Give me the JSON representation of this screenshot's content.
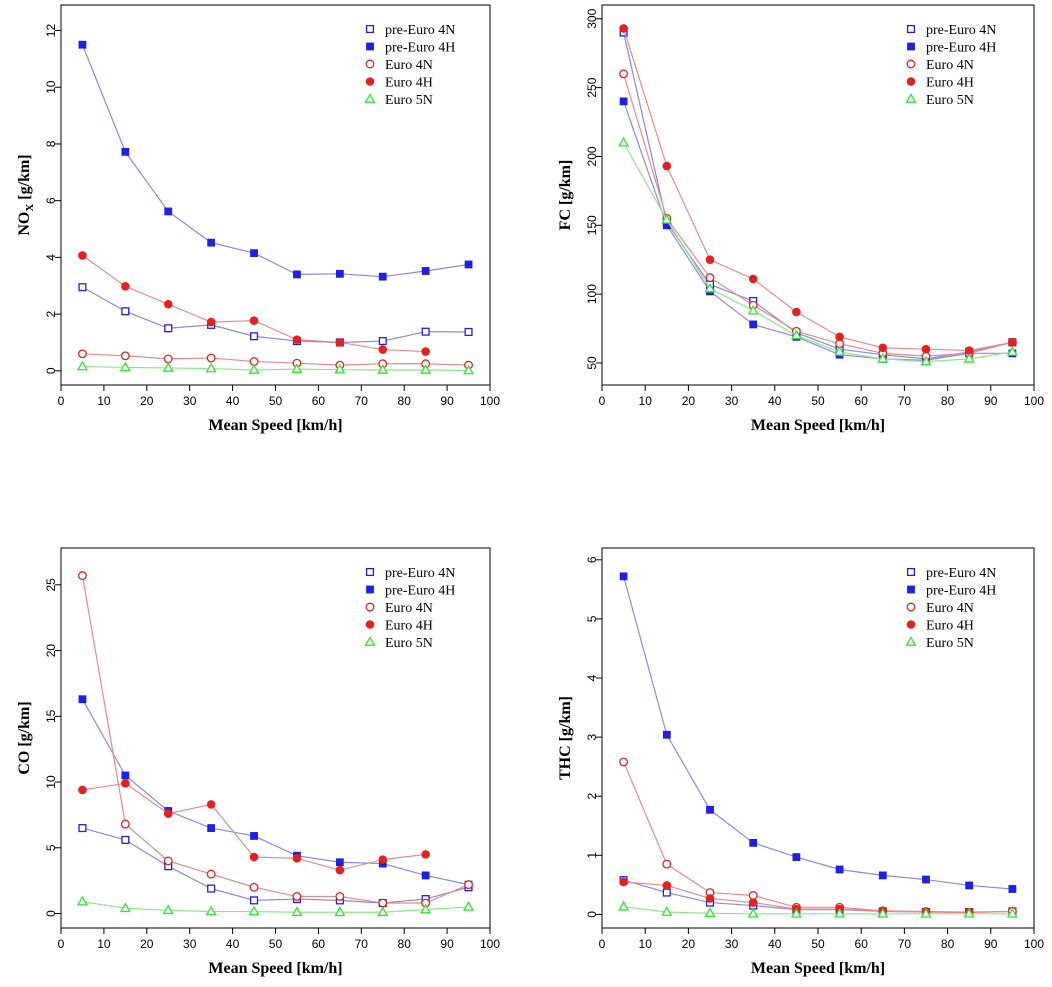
{
  "colors": {
    "blue": "#1f1fe6",
    "red": "#e6201f",
    "green": "#2ee62e",
    "blue_line": "#8a8ae8",
    "red_line": "#e88a8a",
    "green_line": "#8ae88a"
  },
  "chart_data": [
    {
      "type": "line",
      "ylabel": "NOX [g/km]",
      "ylabel_main": "NO",
      "ylabel_sub": "X",
      "ylabel_unit": " [g/km]",
      "xlabel": "Mean Speed [km/h]",
      "xlim": [
        0,
        100
      ],
      "ylim": [
        -0.5,
        12.9
      ],
      "xticks": [
        0,
        10,
        20,
        30,
        40,
        50,
        60,
        70,
        80,
        90,
        100
      ],
      "yticks": [
        0,
        2,
        4,
        6,
        8,
        10,
        12
      ],
      "legend_position": "top-right",
      "series": [
        {
          "name": "pre-Euro 4N",
          "marker": "open-square",
          "color": "blue",
          "x": [
            5,
            15,
            25,
            35,
            45,
            55,
            65,
            75,
            85,
            95
          ],
          "values": [
            2.95,
            2.1,
            1.5,
            1.62,
            1.22,
            1.05,
            1.0,
            1.05,
            1.38,
            1.37
          ]
        },
        {
          "name": "pre-Euro 4H",
          "marker": "filled-square",
          "color": "blue",
          "x": [
            5,
            15,
            25,
            35,
            45,
            55,
            65,
            75,
            85,
            95
          ],
          "values": [
            11.5,
            7.72,
            5.62,
            4.52,
            4.15,
            3.4,
            3.42,
            3.32,
            3.52,
            3.75
          ]
        },
        {
          "name": "Euro 4N",
          "marker": "open-circle",
          "color": "red",
          "x": [
            5,
            15,
            25,
            35,
            45,
            55,
            65,
            75,
            85,
            95
          ],
          "values": [
            0.6,
            0.53,
            0.42,
            0.45,
            0.33,
            0.27,
            0.2,
            0.25,
            0.25,
            0.2
          ]
        },
        {
          "name": "Euro 4H",
          "marker": "filled-circle",
          "color": "red",
          "x": [
            5,
            15,
            25,
            35,
            45,
            55,
            65,
            75,
            85
          ],
          "values": [
            4.07,
            2.98,
            2.35,
            1.72,
            1.77,
            1.1,
            1.0,
            0.75,
            0.68
          ]
        },
        {
          "name": "Euro 5N",
          "marker": "open-triangle",
          "color": "green",
          "x": [
            5,
            15,
            25,
            35,
            45,
            55,
            65,
            75,
            85,
            95
          ],
          "values": [
            0.15,
            0.12,
            0.1,
            0.08,
            0.03,
            0.06,
            0.04,
            0.03,
            0.03,
            0.01
          ]
        }
      ]
    },
    {
      "type": "line",
      "ylabel": "FC [g/km]",
      "xlabel": "Mean Speed [km/h]",
      "xlim": [
        0,
        100
      ],
      "ylim": [
        34,
        310
      ],
      "xticks": [
        0,
        10,
        20,
        30,
        40,
        50,
        60,
        70,
        80,
        90,
        100
      ],
      "yticks": [
        50,
        100,
        150,
        200,
        250,
        300
      ],
      "legend_position": "top-right",
      "series": [
        {
          "name": "pre-Euro 4N",
          "marker": "open-square",
          "color": "blue",
          "x": [
            5,
            15,
            25,
            35,
            45,
            55,
            65,
            75,
            85,
            95
          ],
          "values": [
            290,
            152,
            107,
            95,
            72,
            60,
            56,
            53,
            58,
            65
          ]
        },
        {
          "name": "pre-Euro 4H",
          "marker": "filled-square",
          "color": "blue",
          "x": [
            5,
            15,
            25,
            35,
            45,
            55,
            65,
            75,
            85,
            95
          ],
          "values": [
            240,
            150,
            102,
            78,
            69,
            56,
            53,
            52,
            57,
            57
          ]
        },
        {
          "name": "Euro 4N",
          "marker": "open-circle",
          "color": "red",
          "x": [
            5,
            15,
            25,
            35,
            45,
            55,
            65,
            75,
            85,
            95
          ],
          "values": [
            260,
            155,
            112,
            92,
            73,
            64,
            57,
            55,
            57,
            65
          ]
        },
        {
          "name": "Euro 4H",
          "marker": "filled-circle",
          "color": "red",
          "x": [
            5,
            15,
            25,
            35,
            45,
            55,
            65,
            75,
            85,
            95
          ],
          "values": [
            293,
            193,
            125,
            111,
            87,
            69,
            61,
            60,
            59,
            65
          ]
        },
        {
          "name": "Euro 5N",
          "marker": "open-triangle",
          "color": "green",
          "x": [
            5,
            15,
            25,
            35,
            45,
            55,
            65,
            75,
            85,
            95
          ],
          "values": [
            210,
            154,
            104,
            88,
            70,
            58,
            53,
            51,
            53,
            58
          ]
        }
      ]
    },
    {
      "type": "line",
      "ylabel": "CO [g/km]",
      "xlabel": "Mean Speed [km/h]",
      "xlim": [
        0,
        100
      ],
      "ylim": [
        -1.1,
        27.8
      ],
      "xticks": [
        0,
        10,
        20,
        30,
        40,
        50,
        60,
        70,
        80,
        90,
        100
      ],
      "yticks": [
        0,
        5,
        10,
        15,
        20,
        25
      ],
      "legend_position": "top-right",
      "series": [
        {
          "name": "pre-Euro 4N",
          "marker": "open-square",
          "color": "blue",
          "x": [
            5,
            15,
            25,
            35,
            45,
            55,
            65,
            75,
            85,
            95
          ],
          "values": [
            6.5,
            5.6,
            3.6,
            1.9,
            1.0,
            1.1,
            1.0,
            0.8,
            1.1,
            2.0
          ]
        },
        {
          "name": "pre-Euro 4H",
          "marker": "filled-square",
          "color": "blue",
          "x": [
            5,
            15,
            25,
            35,
            45,
            55,
            65,
            75,
            85,
            95
          ],
          "values": [
            16.3,
            10.5,
            7.8,
            6.5,
            5.9,
            4.4,
            3.9,
            3.8,
            2.9,
            2.2
          ]
        },
        {
          "name": "Euro 4N",
          "marker": "open-circle",
          "color": "red",
          "x": [
            5,
            15,
            25,
            35,
            45,
            55,
            65,
            75,
            85,
            95
          ],
          "values": [
            25.7,
            6.8,
            4.0,
            3.0,
            2.0,
            1.3,
            1.3,
            0.8,
            0.8,
            2.2
          ]
        },
        {
          "name": "Euro 4H",
          "marker": "filled-circle",
          "color": "red",
          "x": [
            5,
            15,
            25,
            35,
            45,
            55,
            65,
            75,
            85
          ],
          "values": [
            9.4,
            9.9,
            7.6,
            8.3,
            4.3,
            4.2,
            3.3,
            4.1,
            4.5
          ]
        },
        {
          "name": "Euro 5N",
          "marker": "open-triangle",
          "color": "green",
          "x": [
            5,
            15,
            25,
            35,
            45,
            55,
            65,
            75,
            85,
            95
          ],
          "values": [
            0.9,
            0.4,
            0.25,
            0.15,
            0.15,
            0.1,
            0.1,
            0.1,
            0.3,
            0.5
          ]
        }
      ]
    },
    {
      "type": "line",
      "ylabel": "THC [g/km]",
      "xlabel": "Mean Speed [km/h]",
      "xlim": [
        0,
        100
      ],
      "ylim": [
        -0.23,
        6.2
      ],
      "xticks": [
        0,
        10,
        20,
        30,
        40,
        50,
        60,
        70,
        80,
        90,
        100
      ],
      "yticks": [
        0,
        1,
        2,
        3,
        4,
        5,
        6
      ],
      "legend_position": "top-right",
      "series": [
        {
          "name": "pre-Euro 4N",
          "marker": "open-square",
          "color": "blue",
          "x": [
            5,
            15,
            25,
            35,
            45,
            55,
            65,
            75,
            85,
            95
          ],
          "values": [
            0.58,
            0.37,
            0.2,
            0.15,
            0.08,
            0.08,
            0.05,
            0.04,
            0.04,
            0.05
          ]
        },
        {
          "name": "pre-Euro 4H",
          "marker": "filled-square",
          "color": "blue",
          "x": [
            5,
            15,
            25,
            35,
            45,
            55,
            65,
            75,
            85,
            95
          ],
          "values": [
            5.72,
            3.04,
            1.77,
            1.21,
            0.97,
            0.76,
            0.66,
            0.59,
            0.49,
            0.43
          ]
        },
        {
          "name": "Euro 4N",
          "marker": "open-circle",
          "color": "red",
          "x": [
            5,
            15,
            25,
            35,
            45,
            55,
            65,
            75,
            85,
            95
          ],
          "values": [
            2.58,
            0.85,
            0.37,
            0.32,
            0.12,
            0.12,
            0.06,
            0.04,
            0.03,
            0.05
          ]
        },
        {
          "name": "Euro 4H",
          "marker": "filled-circle",
          "color": "red",
          "x": [
            5,
            15,
            25,
            35,
            45,
            55,
            65,
            75,
            85
          ],
          "values": [
            0.55,
            0.49,
            0.27,
            0.2,
            0.09,
            0.09,
            0.06,
            0.05,
            0.04
          ]
        },
        {
          "name": "Euro 5N",
          "marker": "open-triangle",
          "color": "green",
          "x": [
            5,
            15,
            25,
            35,
            45,
            55,
            65,
            75,
            85,
            95
          ],
          "values": [
            0.13,
            0.04,
            0.02,
            0.01,
            0.01,
            0.01,
            0.01,
            0.01,
            0.01,
            0.01
          ]
        }
      ]
    }
  ]
}
